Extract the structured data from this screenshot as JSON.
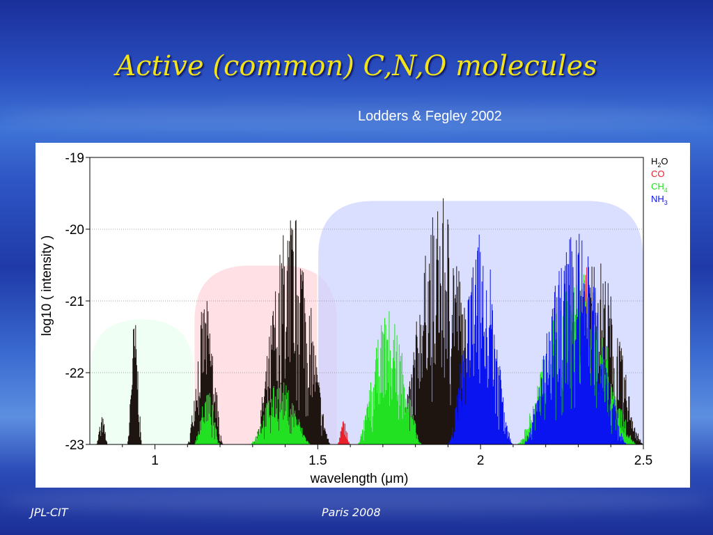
{
  "slide": {
    "title": "Active (common) C,N,O molecules",
    "citation": "Lodders & Fegley 2002",
    "footer_left": "JPL-CIT",
    "footer_center": "Paris 2008"
  },
  "chart_data": {
    "type": "area",
    "title": "",
    "xlabel": "wavelength (μm)",
    "ylabel": "log10 ( intensity )",
    "xlim": [
      0.8,
      2.5
    ],
    "ylim": [
      -23,
      -19
    ],
    "x_ticks": [
      1,
      1.5,
      2,
      2.5
    ],
    "x_tick_labels": [
      "1",
      "1.5",
      "2",
      "2.5"
    ],
    "y_ticks": [
      -23,
      -22,
      -21,
      -20,
      -19
    ],
    "y_tick_labels": [
      "-23",
      "-22",
      "-21",
      "-20",
      "-19"
    ],
    "grid": "horizontal dotted",
    "legend_position": "top-right",
    "series": [
      {
        "name": "H2O",
        "legend_label": "H",
        "legend_sub": "2",
        "legend_suffix": "O",
        "color": "#1e1410",
        "bands": [
          {
            "x": [
              0.82,
              0.855
            ],
            "peak": -22.6
          },
          {
            "x": [
              0.915,
              0.96
            ],
            "peak": -21.2
          },
          {
            "x": [
              1.1,
              1.21
            ],
            "peak": -20.95
          },
          {
            "x": [
              1.3,
              1.54
            ],
            "peak": -19.7
          },
          {
            "x": [
              1.74,
              2.02
            ],
            "peak": -19.55
          },
          {
            "x": [
              2.2,
              2.5
            ],
            "peak": -20.3
          }
        ]
      },
      {
        "name": "CO",
        "legend_label": "CO",
        "legend_sub": "",
        "legend_suffix": "",
        "color": "#e8202a",
        "bands": [
          {
            "x": [
              1.56,
              1.6
            ],
            "peak": -22.65
          },
          {
            "x": [
              2.29,
              2.36
            ],
            "peak": -20.45
          }
        ]
      },
      {
        "name": "CH4",
        "legend_label": "CH",
        "legend_sub": "4",
        "legend_suffix": "",
        "color": "#22e022",
        "bands": [
          {
            "x": [
              1.12,
              1.2
            ],
            "peak": -22.2
          },
          {
            "x": [
              1.29,
              1.48
            ],
            "peak": -22.1
          },
          {
            "x": [
              1.62,
              1.82
            ],
            "peak": -21.1
          },
          {
            "x": [
              2.11,
              2.48
            ],
            "peak": -20.5
          }
        ]
      },
      {
        "name": "NH3",
        "legend_label": "NH",
        "legend_sub": "3",
        "legend_suffix": "",
        "color": "#0a14f0",
        "bands": [
          {
            "x": [
              1.9,
              2.1
            ],
            "peak": -20.05
          },
          {
            "x": [
              2.13,
              2.45
            ],
            "peak": -19.95
          }
        ]
      }
    ],
    "highlight_regions": [
      {
        "x": [
          0.8,
          1.12
        ],
        "top": -21.25,
        "color": "#eafff0"
      },
      {
        "x": [
          1.12,
          1.56
        ],
        "top": -20.5,
        "color": "#ffd6dc"
      },
      {
        "x": [
          1.5,
          2.5
        ],
        "top": -19.6,
        "color": "#cdd3ff"
      }
    ]
  }
}
